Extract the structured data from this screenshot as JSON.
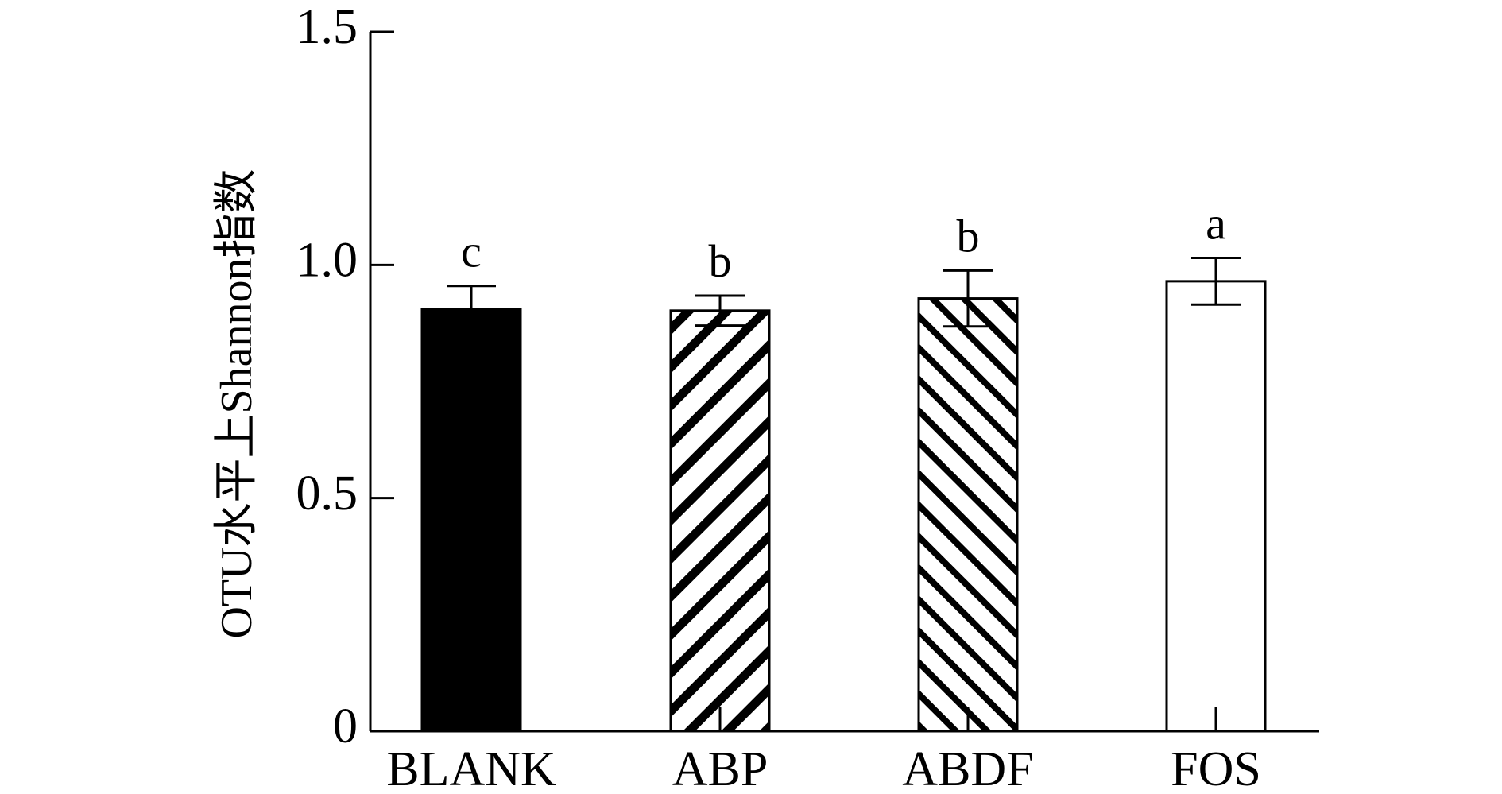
{
  "chart_data": {
    "type": "bar",
    "title": "",
    "xlabel": "",
    "ylabel": "OTU水平上Shannon指数",
    "ylim": [
      0,
      1.5
    ],
    "yticks": [
      0,
      0.5,
      1.0,
      1.5
    ],
    "ytick_labels": [
      "0",
      "0.5",
      "1.0",
      "1.5"
    ],
    "grid": false,
    "categories": [
      "BLANK",
      "ABP",
      "ABDF",
      "FOS"
    ],
    "values": [
      0.905,
      0.902,
      0.928,
      0.965
    ],
    "errors": [
      0.05,
      0.032,
      0.06,
      0.05
    ],
    "significance": [
      "c",
      "b",
      "b",
      "a"
    ],
    "fills": [
      "solid-black",
      "diagonal-hatch-bold",
      "diagonal-hatch-fine",
      "white"
    ],
    "colors": {
      "bar_dark": "#000000",
      "bar_light": "#ffffff",
      "axis": "#000000"
    }
  }
}
